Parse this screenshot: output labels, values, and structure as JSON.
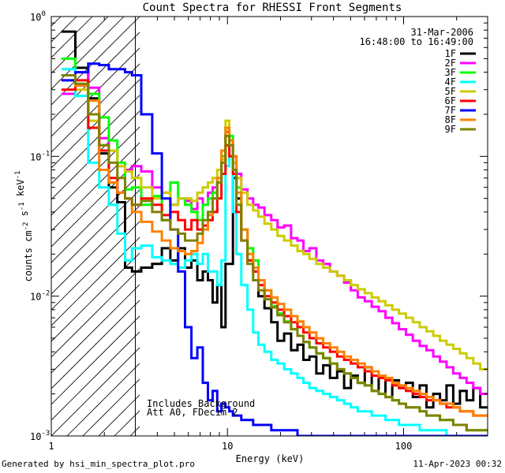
{
  "footer": {
    "generated_by": "Generated by hsi_min_spectra_plot.pro",
    "timestamp": "11-Apr-2023 00:32"
  },
  "chart_data": {
    "type": "line",
    "title": "Count Spectra for RHESSI Front Segments",
    "xlabel": "Energy (keV)",
    "ylabel": "counts cm-2 s-1 keV-1",
    "xscale": "log",
    "yscale": "log",
    "xlim": [
      1,
      300
    ],
    "ylim": [
      0.001,
      1
    ],
    "x_ticks": [
      {
        "value": 1,
        "label": "1"
      },
      {
        "value": 10,
        "label": "10"
      },
      {
        "value": 100,
        "label": "100"
      }
    ],
    "y_ticks": [
      {
        "value": 1,
        "label": "10",
        "exp": "0"
      },
      {
        "value": 0.1,
        "label": "10",
        "exp": "-1"
      },
      {
        "value": 0.01,
        "label": "10",
        "exp": "-2"
      },
      {
        "value": 0.001,
        "label": "10",
        "exp": "-3"
      }
    ],
    "legend": {
      "position": "top-right",
      "date": "31-Mar-2006",
      "time_range": "16:48:00 to 16:49:00"
    },
    "annotations": [
      "Includes Background",
      "Att A0, FDecim 2"
    ],
    "hatched_region": [
      1,
      3
    ],
    "grid": false,
    "x": [
      1.25,
      1.5,
      1.75,
      2,
      2.25,
      2.5,
      2.75,
      3,
      3.5,
      4,
      4.5,
      5,
      5.5,
      6,
      6.5,
      7,
      7.5,
      8,
      8.5,
      9,
      9.5,
      10,
      10.5,
      11,
      11.5,
      12.5,
      13.5,
      14.5,
      15.5,
      17,
      18.5,
      20,
      22,
      24,
      26,
      28,
      30.5,
      33.5,
      36.5,
      40,
      44,
      48,
      52.5,
      57.5,
      63,
      69,
      75.5,
      82.5,
      90,
      98.5,
      108,
      118,
      129,
      141,
      154,
      168,
      183,
      200,
      218,
      238,
      260,
      285
    ],
    "series": [
      {
        "name": "1F",
        "color": "#000000",
        "values": [
          0.78,
          0.43,
          0.26,
          0.105,
          0.06,
          0.047,
          0.016,
          0.015,
          0.016,
          0.017,
          0.022,
          0.018,
          0.022,
          0.016,
          0.018,
          0.013,
          0.015,
          0.013,
          0.009,
          0.012,
          0.006,
          0.017,
          0.017,
          0.07,
          0.05,
          0.03,
          0.018,
          0.015,
          0.01,
          0.0082,
          0.0065,
          0.0048,
          0.0054,
          0.0041,
          0.0045,
          0.0035,
          0.0037,
          0.0028,
          0.0032,
          0.0026,
          0.0029,
          0.0022,
          0.0027,
          0.0024,
          0.0031,
          0.0021,
          0.0026,
          0.0019,
          0.0025,
          0.0022,
          0.0024,
          0.0019,
          0.0023,
          0.0016,
          0.002,
          0.0018,
          0.0023,
          0.0017,
          0.0021,
          0.0018,
          0.0022,
          0.0016
        ]
      },
      {
        "name": "2F",
        "color": "#ff00ff",
        "values": [
          0.28,
          0.4,
          0.31,
          0.135,
          0.11,
          0.085,
          0.08,
          0.085,
          0.078,
          0.06,
          0.055,
          0.045,
          0.05,
          0.048,
          0.042,
          0.05,
          0.045,
          0.055,
          0.06,
          0.065,
          0.09,
          0.15,
          0.13,
          0.1,
          0.075,
          0.058,
          0.05,
          0.045,
          0.043,
          0.038,
          0.035,
          0.031,
          0.032,
          0.026,
          0.025,
          0.021,
          0.022,
          0.018,
          0.017,
          0.015,
          0.014,
          0.0125,
          0.011,
          0.0098,
          0.0092,
          0.0084,
          0.0078,
          0.007,
          0.0064,
          0.0058,
          0.0053,
          0.0048,
          0.0044,
          0.0041,
          0.0037,
          0.0034,
          0.0031,
          0.0028,
          0.0026,
          0.0024,
          0.0022,
          0.002
        ]
      },
      {
        "name": "3F",
        "color": "#00ff00",
        "values": [
          0.5,
          0.33,
          0.28,
          0.19,
          0.13,
          0.09,
          0.058,
          0.06,
          0.045,
          0.052,
          0.035,
          0.065,
          0.05,
          0.045,
          0.04,
          0.035,
          0.045,
          0.05,
          0.055,
          0.07,
          0.1,
          0.16,
          0.14,
          0.1,
          0.06,
          0.03,
          0.022,
          0.018,
          0.012,
          0.011,
          0.0085,
          0.0075,
          0.0066,
          0.0058,
          0.0052,
          0.0047,
          0.0043,
          0.0039,
          0.0036,
          0.0033,
          0.003,
          0.0028,
          0.0026,
          0.0024,
          0.0023,
          0.0021,
          0.002,
          0.0019,
          0.0018,
          0.0017,
          0.0016,
          0.0016,
          0.0015,
          0.0014,
          0.0014,
          0.0013,
          0.0013,
          0.0012,
          0.0012,
          0.0011,
          0.0011,
          0.0011
        ]
      },
      {
        "name": "4F",
        "color": "#00ffff",
        "values": [
          0.42,
          0.27,
          0.09,
          0.06,
          0.045,
          0.028,
          0.018,
          0.022,
          0.023,
          0.019,
          0.018,
          0.017,
          0.016,
          0.018,
          0.02,
          0.017,
          0.02,
          0.015,
          0.015,
          0.012,
          0.018,
          0.085,
          0.1,
          0.04,
          0.02,
          0.012,
          0.008,
          0.0055,
          0.0045,
          0.004,
          0.0035,
          0.0033,
          0.003,
          0.0028,
          0.0026,
          0.0024,
          0.0022,
          0.0021,
          0.002,
          0.0019,
          0.0018,
          0.0017,
          0.0016,
          0.0015,
          0.0015,
          0.0014,
          0.0014,
          0.0013,
          0.0013,
          0.0012,
          0.0012,
          0.0012,
          0.0011,
          0.0011,
          0.0011,
          0.0011,
          0.001,
          0.001,
          0.001,
          0.001,
          0.001,
          0.001
        ]
      },
      {
        "name": "5F",
        "color": "#cccc00",
        "values": [
          0.35,
          0.3,
          0.18,
          0.12,
          0.11,
          0.085,
          0.078,
          0.07,
          0.06,
          0.05,
          0.055,
          0.045,
          0.05,
          0.05,
          0.048,
          0.055,
          0.06,
          0.065,
          0.07,
          0.08,
          0.095,
          0.18,
          0.12,
          0.09,
          0.07,
          0.055,
          0.045,
          0.041,
          0.037,
          0.033,
          0.03,
          0.027,
          0.025,
          0.023,
          0.021,
          0.02,
          0.0185,
          0.017,
          0.016,
          0.015,
          0.014,
          0.013,
          0.012,
          0.0112,
          0.0105,
          0.0098,
          0.0092,
          0.0086,
          0.008,
          0.0075,
          0.007,
          0.0065,
          0.006,
          0.0056,
          0.0052,
          0.0048,
          0.0045,
          0.0042,
          0.0039,
          0.0036,
          0.0033,
          0.003
        ]
      },
      {
        "name": "6F",
        "color": "#ff0000",
        "values": [
          0.3,
          0.35,
          0.16,
          0.11,
          0.07,
          0.055,
          0.05,
          0.045,
          0.05,
          0.045,
          0.038,
          0.04,
          0.035,
          0.03,
          0.035,
          0.03,
          0.032,
          0.035,
          0.04,
          0.05,
          0.075,
          0.12,
          0.1,
          0.075,
          0.04,
          0.025,
          0.018,
          0.015,
          0.012,
          0.01,
          0.009,
          0.008,
          0.0072,
          0.0065,
          0.006,
          0.0055,
          0.005,
          0.0046,
          0.0043,
          0.004,
          0.0037,
          0.0035,
          0.0033,
          0.0031,
          0.0029,
          0.0027,
          0.0026,
          0.0025,
          0.0023,
          0.0022,
          0.0021,
          0.002,
          0.0019,
          0.0018,
          0.0018,
          0.0017,
          0.0016,
          0.0016,
          0.0015,
          0.0015,
          0.0014,
          0.0014
        ]
      },
      {
        "name": "7F",
        "color": "#0000ff",
        "values": [
          0.35,
          0.4,
          0.46,
          0.45,
          0.42,
          0.42,
          0.4,
          0.38,
          0.2,
          0.105,
          0.05,
          0.03,
          0.015,
          0.006,
          0.0036,
          0.0043,
          0.0024,
          0.0018,
          0.0021,
          0.0015,
          0.0017,
          0.0016,
          0.0015,
          0.0014,
          0.0014,
          0.0013,
          0.0013,
          0.0012,
          0.0012,
          0.0012,
          0.0011,
          0.0011,
          0.0011,
          0.0011,
          0.001,
          0.001,
          0.001,
          0.001,
          0.001,
          0.001,
          0.001,
          0.001,
          0.001,
          0.001,
          0.001,
          0.001,
          0.001,
          0.001,
          0.001,
          0.001,
          0.001,
          0.001,
          0.001,
          0.001,
          0.001,
          0.001,
          0.001,
          0.001,
          0.001,
          0.001,
          0.001,
          0.001
        ]
      },
      {
        "name": "8F",
        "color": "#ff8000",
        "values": [
          0.38,
          0.32,
          0.25,
          0.08,
          0.065,
          0.055,
          0.05,
          0.04,
          0.034,
          0.029,
          0.025,
          0.022,
          0.021,
          0.02,
          0.021,
          0.024,
          0.03,
          0.038,
          0.05,
          0.07,
          0.11,
          0.16,
          0.13,
          0.1,
          0.055,
          0.03,
          0.02,
          0.016,
          0.013,
          0.011,
          0.0098,
          0.0088,
          0.008,
          0.0072,
          0.0066,
          0.006,
          0.0055,
          0.005,
          0.0046,
          0.0043,
          0.004,
          0.0037,
          0.0035,
          0.0033,
          0.0031,
          0.0029,
          0.0027,
          0.0026,
          0.0024,
          0.0023,
          0.0022,
          0.0021,
          0.002,
          0.0019,
          0.0018,
          0.0017,
          0.0017,
          0.0016,
          0.0015,
          0.0015,
          0.0014,
          0.0014
        ]
      },
      {
        "name": "9F",
        "color": "#808000",
        "values": [
          0.38,
          0.33,
          0.2,
          0.12,
          0.09,
          0.07,
          0.05,
          0.045,
          0.048,
          0.04,
          0.035,
          0.03,
          0.028,
          0.025,
          0.025,
          0.028,
          0.035,
          0.04,
          0.05,
          0.065,
          0.09,
          0.14,
          0.12,
          0.08,
          0.045,
          0.025,
          0.017,
          0.013,
          0.011,
          0.0095,
          0.0083,
          0.0073,
          0.0065,
          0.0058,
          0.0052,
          0.0047,
          0.0043,
          0.0039,
          0.0036,
          0.0033,
          0.003,
          0.0028,
          0.0026,
          0.0024,
          0.0023,
          0.0021,
          0.002,
          0.0019,
          0.0018,
          0.0017,
          0.0016,
          0.0016,
          0.0015,
          0.0014,
          0.0014,
          0.0013,
          0.0013,
          0.0012,
          0.0012,
          0.0011,
          0.0011,
          0.0011
        ]
      }
    ]
  }
}
